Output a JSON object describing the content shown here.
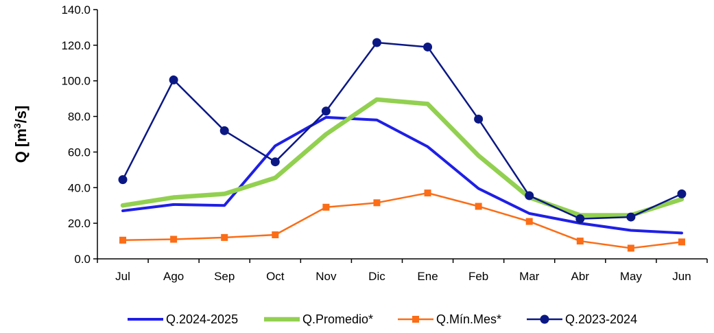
{
  "chart_data": {
    "type": "line",
    "title": "",
    "xlabel": "",
    "ylabel": "Q [m³/s]",
    "ylabel_parts": {
      "main": "Q [m",
      "sup": "3",
      "tail": "/s]"
    },
    "categories": [
      "Jul",
      "Ago",
      "Sep",
      "Oct",
      "Nov",
      "Dic",
      "Ene",
      "Feb",
      "Mar",
      "Abr",
      "May",
      "Jun"
    ],
    "ylim": [
      0,
      140
    ],
    "yticks": [
      0,
      20,
      40,
      60,
      80,
      100,
      120,
      140
    ],
    "ytick_labels": [
      "0.0",
      "20.0",
      "40.0",
      "60.0",
      "80.0",
      "100.0",
      "120.0",
      "140.0"
    ],
    "grid": false,
    "legend_position": "bottom",
    "series": [
      {
        "name": "Q.2024-2025",
        "color": "#1f1fe6",
        "marker": "none",
        "values": [
          27,
          30.5,
          30,
          63.5,
          79.5,
          78,
          63,
          39.5,
          25.5,
          20,
          16,
          14.5
        ]
      },
      {
        "name": "Q.Promedio*",
        "color": "#92d050",
        "marker": "none",
        "values": [
          30,
          34.5,
          36.5,
          45.5,
          70,
          89.5,
          87,
          58,
          34.5,
          24.5,
          24.5,
          33.5
        ]
      },
      {
        "name": "Q.Mín.Mes*",
        "color": "#fb6d16",
        "marker": "square",
        "values": [
          10.5,
          11,
          12,
          13.5,
          29,
          31.5,
          37,
          29.5,
          21,
          10,
          6,
          9.5
        ]
      },
      {
        "name": "Q.2023-2024",
        "color": "#0b1884",
        "marker": "circle",
        "values": [
          44.5,
          100.5,
          72,
          54.5,
          83,
          121.5,
          119,
          78.5,
          35.5,
          22.5,
          23.5,
          36.5
        ]
      }
    ]
  }
}
